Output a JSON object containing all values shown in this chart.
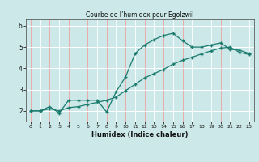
{
  "title": "Courbe de l’humidex pour Egolzwil",
  "xlabel": "Humidex (Indice chaleur)",
  "background_color": "#cce8e8",
  "grid_color_white": "#ffffff",
  "grid_color_pink": "#f0a0a0",
  "line_color": "#1a7a6e",
  "xlim": [
    -0.5,
    23.5
  ],
  "ylim": [
    1.5,
    6.3
  ],
  "yticks": [
    2,
    3,
    4,
    5,
    6
  ],
  "xticks": [
    0,
    1,
    2,
    3,
    4,
    5,
    6,
    7,
    8,
    9,
    10,
    11,
    12,
    13,
    14,
    15,
    16,
    17,
    18,
    19,
    20,
    21,
    22,
    23
  ],
  "line1_x": [
    0,
    1,
    2,
    3,
    4,
    5,
    6,
    7,
    8,
    9,
    10,
    11,
    12,
    13,
    14,
    15,
    16,
    17,
    18,
    19,
    20,
    21,
    22,
    23
  ],
  "line1_y": [
    2.0,
    2.0,
    2.2,
    1.9,
    2.5,
    2.5,
    2.5,
    2.5,
    1.95,
    2.9,
    3.6,
    4.7,
    5.1,
    5.35,
    5.55,
    5.65,
    5.3,
    5.0,
    5.0,
    5.1,
    5.2,
    4.9,
    4.85,
    4.7
  ],
  "line2_x": [
    0,
    1,
    2,
    3,
    4,
    5,
    6,
    7,
    8,
    9,
    10,
    11,
    12,
    13,
    14,
    15,
    16,
    17,
    18,
    19,
    20,
    21,
    22,
    23
  ],
  "line2_y": [
    2.0,
    2.0,
    2.1,
    2.0,
    2.15,
    2.2,
    2.3,
    2.4,
    2.5,
    2.65,
    2.95,
    3.25,
    3.55,
    3.75,
    3.95,
    4.2,
    4.38,
    4.52,
    4.68,
    4.82,
    4.95,
    5.0,
    4.75,
    4.65
  ]
}
